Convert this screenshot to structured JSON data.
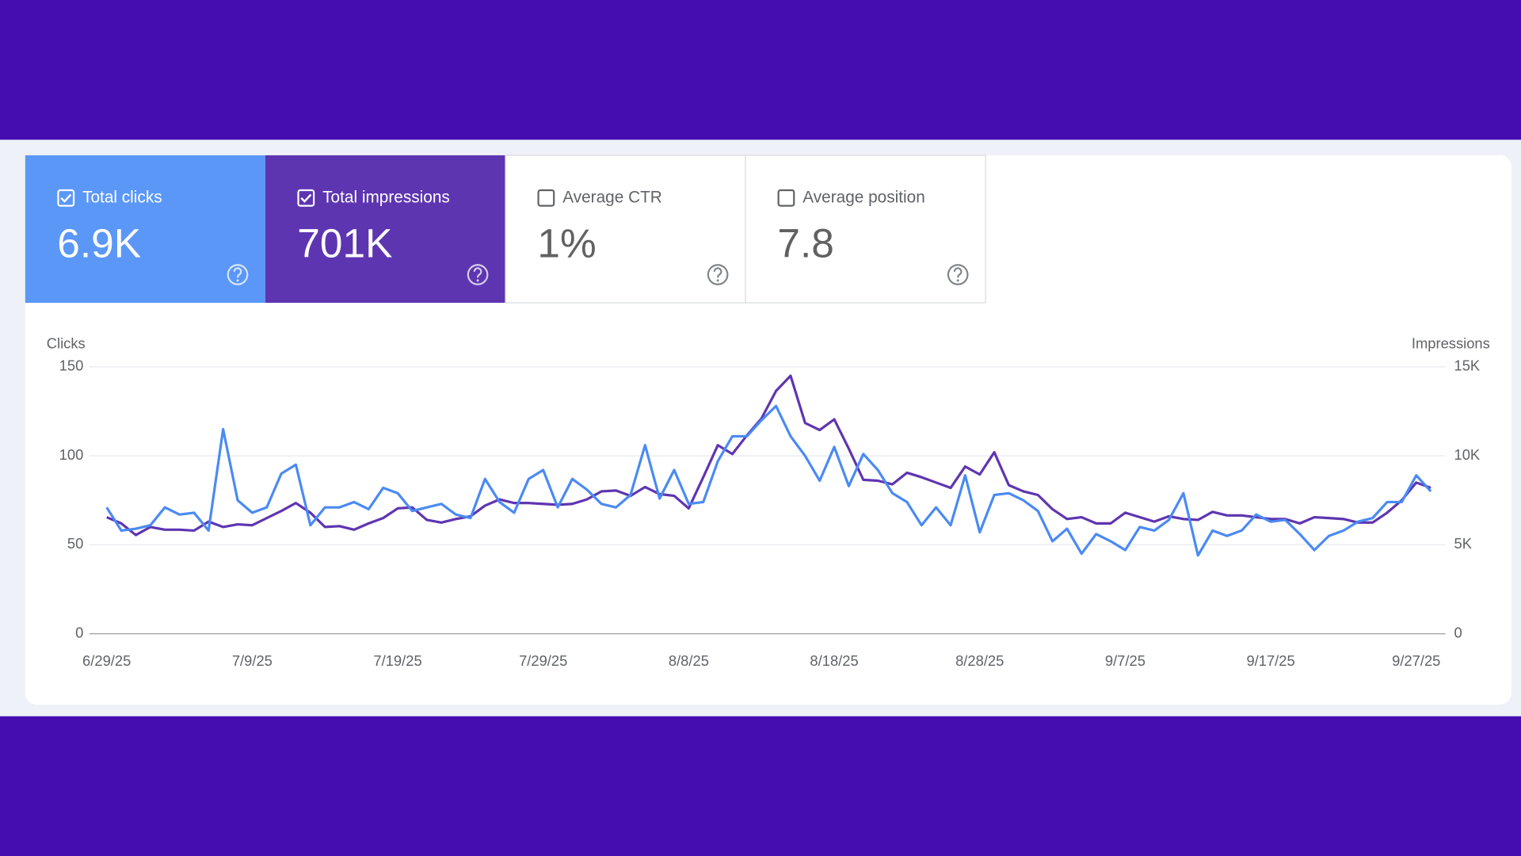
{
  "cards": [
    {
      "label": "Total clicks",
      "value": "6.9K",
      "checked": true,
      "color": "#5b97f7"
    },
    {
      "label": "Total impressions",
      "value": "701K",
      "checked": true,
      "color": "#5e35b1"
    },
    {
      "label": "Average CTR",
      "value": "1%",
      "checked": false,
      "color": "#ffffff"
    },
    {
      "label": "Average position",
      "value": "7.8",
      "checked": false,
      "color": "#ffffff"
    }
  ],
  "chart_data": {
    "type": "line",
    "y_label": "Clicks",
    "y2_label": "Impressions",
    "categories": [
      "6/29/25",
      null,
      null,
      null,
      null,
      null,
      null,
      null,
      null,
      null,
      "7/9/25",
      null,
      null,
      null,
      null,
      null,
      null,
      null,
      null,
      null,
      "7/19/25",
      null,
      null,
      null,
      null,
      null,
      null,
      null,
      null,
      null,
      "7/29/25",
      null,
      null,
      null,
      null,
      null,
      null,
      null,
      null,
      null,
      "8/8/25",
      null,
      null,
      null,
      null,
      null,
      null,
      null,
      null,
      null,
      "8/18/25",
      null,
      null,
      null,
      null,
      null,
      null,
      null,
      null,
      null,
      "8/28/25",
      null,
      null,
      null,
      null,
      null,
      null,
      null,
      null,
      null,
      "9/7/25",
      null,
      null,
      null,
      null,
      null,
      null,
      null,
      null,
      null,
      "9/17/25",
      null,
      null,
      null,
      null,
      null,
      null,
      null,
      null,
      null,
      "9/27/25",
      null
    ],
    "series": [
      {
        "color": "#4a8af4",
        "axis": "y",
        "values": [
          71,
          58,
          59,
          61,
          71,
          67,
          68,
          58,
          115,
          75,
          68,
          71,
          90,
          95,
          61,
          71,
          71,
          74,
          70,
          82,
          79,
          69,
          71,
          73,
          67,
          65,
          87,
          74,
          68,
          87,
          92,
          71,
          87,
          81,
          73,
          71,
          78,
          106,
          76,
          92,
          73,
          74,
          97,
          111,
          111,
          120,
          128,
          111,
          100,
          86,
          105,
          83,
          101,
          92,
          79,
          74,
          61,
          71,
          61,
          89,
          57,
          78,
          79,
          75,
          69,
          52,
          59,
          45,
          56,
          52,
          47,
          60,
          58,
          64,
          79,
          44,
          58,
          55,
          58,
          67,
          63,
          64,
          56,
          47,
          55,
          58,
          63,
          65,
          74,
          74,
          89,
          80
        ]
      },
      {
        "color": "#5e35b1",
        "axis": "y2",
        "values": [
          6550,
          6200,
          5550,
          6000,
          5850,
          5850,
          5800,
          6300,
          6000,
          6150,
          6100,
          6500,
          6900,
          7350,
          6800,
          6000,
          6050,
          5850,
          6200,
          6500,
          7050,
          7100,
          6400,
          6250,
          6450,
          6600,
          7200,
          7550,
          7350,
          7350,
          7300,
          7250,
          7300,
          7550,
          8000,
          8050,
          7750,
          8250,
          7850,
          7750,
          7050,
          8800,
          10600,
          10100,
          11150,
          12100,
          13650,
          14500,
          11850,
          11450,
          12050,
          10400,
          8650,
          8600,
          8400,
          9050,
          8800,
          8500,
          8200,
          9400,
          8950,
          10200,
          8350,
          8000,
          7800,
          7000,
          6450,
          6550,
          6200,
          6200,
          6800,
          6550,
          6300,
          6600,
          6450,
          6400,
          6850,
          6650,
          6650,
          6550,
          6450,
          6450,
          6200,
          6550,
          6500,
          6450,
          6250,
          6250,
          6800,
          7500,
          8500,
          8200
        ]
      }
    ],
    "ylim": [
      0,
      150
    ],
    "yticks": [
      0,
      50,
      100,
      150
    ],
    "y2lim": [
      0,
      15000
    ],
    "y2ticks": [
      0,
      {
        "value": 5000,
        "label": "5K"
      },
      {
        "value": 10000,
        "label": "10K"
      },
      {
        "value": 15000,
        "label": "15K"
      }
    ],
    "grid": true
  }
}
